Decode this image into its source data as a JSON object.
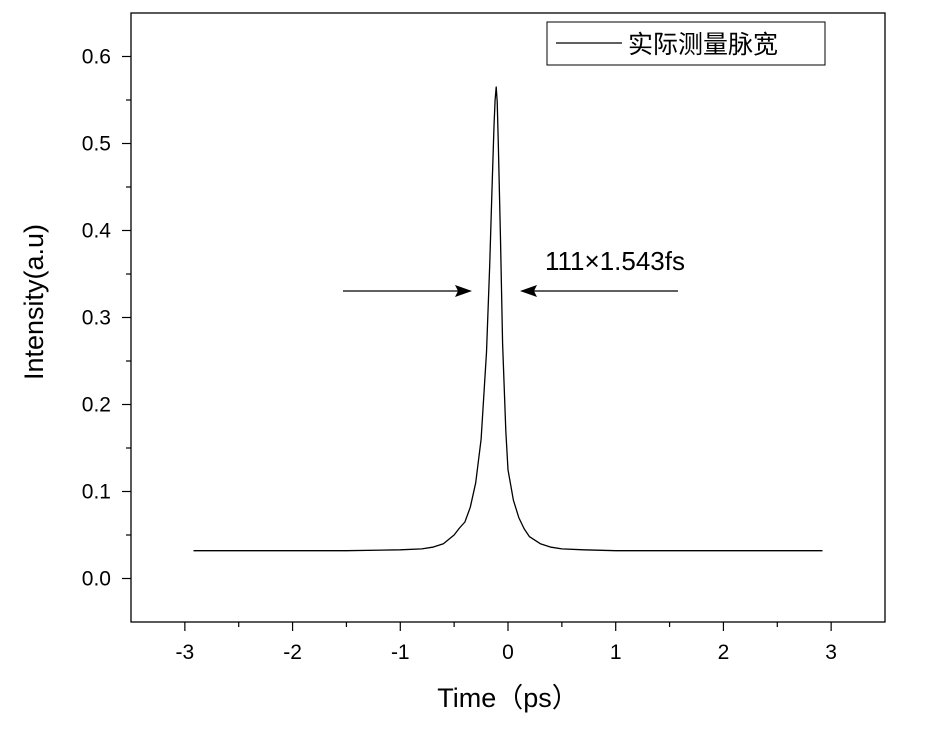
{
  "chart_data": {
    "type": "line",
    "xlabel": "Time（ps）",
    "ylabel": "Intensity(a.u)",
    "xlim": [
      -3.5,
      3.5
    ],
    "ylim": [
      -0.05,
      0.65
    ],
    "x_ticks": [
      -3,
      -2,
      -1,
      0,
      1,
      2,
      3
    ],
    "x_tick_labels": [
      "-3",
      "-2",
      "-1",
      "0",
      "1",
      "2",
      "3"
    ],
    "y_ticks": [
      0.0,
      0.1,
      0.2,
      0.3,
      0.4,
      0.5,
      0.6
    ],
    "y_tick_labels": [
      "0.0",
      "0.1",
      "0.2",
      "0.3",
      "0.4",
      "0.5",
      "0.6"
    ],
    "grid": false,
    "legend_position": "top-right",
    "series": [
      {
        "name": "实际测量脉宽",
        "color": "#000000",
        "x": [
          -2.92,
          -2.5,
          -2.0,
          -1.5,
          -1.0,
          -0.8,
          -0.7,
          -0.6,
          -0.5,
          -0.45,
          -0.4,
          -0.35,
          -0.3,
          -0.25,
          -0.2,
          -0.17,
          -0.15,
          -0.13,
          -0.12,
          -0.11,
          -0.1,
          -0.09,
          -0.07,
          -0.05,
          -0.02,
          0.0,
          0.05,
          0.1,
          0.15,
          0.2,
          0.3,
          0.4,
          0.5,
          0.7,
          1.0,
          1.5,
          2.0,
          2.5,
          2.92
        ],
        "y": [
          0.032,
          0.032,
          0.032,
          0.032,
          0.033,
          0.034,
          0.036,
          0.04,
          0.05,
          0.058,
          0.065,
          0.082,
          0.11,
          0.16,
          0.26,
          0.36,
          0.44,
          0.52,
          0.55,
          0.565,
          0.548,
          0.5,
          0.39,
          0.27,
          0.17,
          0.125,
          0.09,
          0.07,
          0.057,
          0.048,
          0.04,
          0.036,
          0.034,
          0.033,
          0.032,
          0.032,
          0.032,
          0.032,
          0.032
        ]
      }
    ],
    "annotations": [
      {
        "text": "111×1.543fs"
      }
    ]
  },
  "colors": {
    "axis": "#000000",
    "line": "#000000",
    "background": "#ffffff"
  }
}
